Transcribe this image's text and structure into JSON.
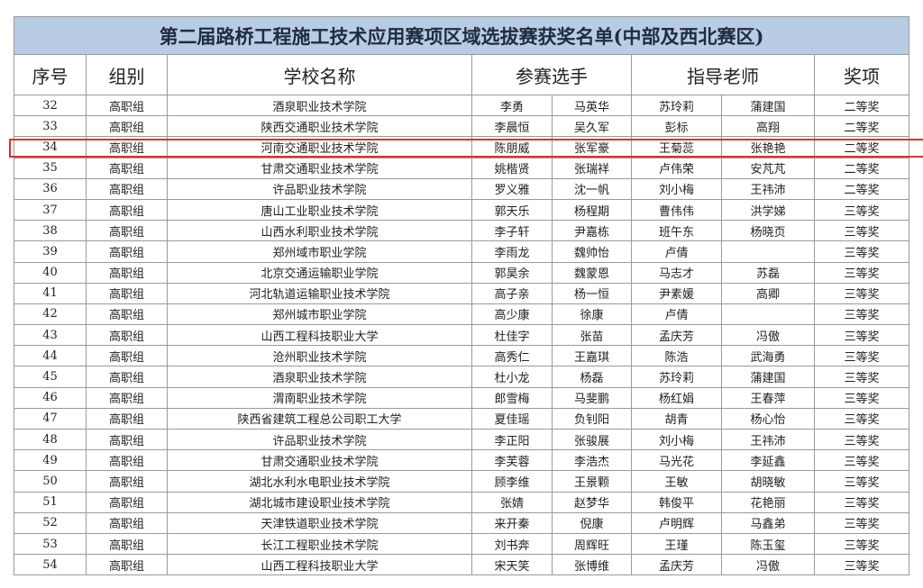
{
  "title": "第二届路桥工程施工技术应用赛项区域选拔赛获奖名单(中部及西北赛区)",
  "headers": {
    "no": "序号",
    "group": "组别",
    "school": "学校名称",
    "contestants": "参赛选手",
    "advisors": "指导老师",
    "award": "奖项"
  },
  "highlight_color": "#e0302a",
  "highlighted_row": "34",
  "rows": [
    [
      "32",
      "高职组",
      "酒泉职业技术学院",
      "李勇",
      "马英华",
      "苏玲莉",
      "蒲建国",
      "二等奖"
    ],
    [
      "33",
      "高职组",
      "陕西交通职业技术学院",
      "李晨恒",
      "吴久军",
      "彭标",
      "高翔",
      "二等奖"
    ],
    [
      "34",
      "高职组",
      "河南交通职业技术学院",
      "陈朋威",
      "张军豪",
      "王菊蕊",
      "张艳艳",
      "二等奖"
    ],
    [
      "35",
      "高职组",
      "甘肃交通职业技术学院",
      "姚楷贤",
      "张瑞祥",
      "卢伟荣",
      "安芃芃",
      "二等奖"
    ],
    [
      "36",
      "高职组",
      "许品职业技术学院",
      "罗义雅",
      "沈一帆",
      "刘小梅",
      "王祎沛",
      "二等奖"
    ],
    [
      "37",
      "高职组",
      "唐山工业职业技术学院",
      "郭天乐",
      "杨程期",
      "曹伟伟",
      "洪学娣",
      "三等奖"
    ],
    [
      "38",
      "高职组",
      "山西水利职业技术学院",
      "李子轩",
      "尹嘉栋",
      "班午东",
      "杨晓页",
      "三等奖"
    ],
    [
      "39",
      "高职组",
      "郑州域市职业学院",
      "李雨龙",
      "魏帅怡",
      "卢倩",
      "",
      "三等奖"
    ],
    [
      "40",
      "高职组",
      "北京交通运输职业学院",
      "郭昊余",
      "魏蒙恩",
      "马志才",
      "苏磊",
      "三等奖"
    ],
    [
      "41",
      "高职组",
      "河北轨道运输职业技术学院",
      "高子亲",
      "杨一恒",
      "尹素媛",
      "高卿",
      "三等奖"
    ],
    [
      "42",
      "高职组",
      "郑州城市职业学院",
      "高少康",
      "徐康",
      "卢倩",
      "",
      "三等奖"
    ],
    [
      "43",
      "高职组",
      "山西工程科技职业大学",
      "杜佳字",
      "张苗",
      "孟庆芳",
      "冯傲",
      "三等奖"
    ],
    [
      "44",
      "高职组",
      "沧州职业技术学院",
      "高秀仁",
      "王嘉琪",
      "陈浩",
      "武海勇",
      "三等奖"
    ],
    [
      "45",
      "高职组",
      "酒泉职业技术学院",
      "杜小龙",
      "杨磊",
      "苏玲莉",
      "蒲建国",
      "三等奖"
    ],
    [
      "46",
      "高职组",
      "渭南职业技术学院",
      "郎雪梅",
      "马斐鹏",
      "杨红娟",
      "王春萍",
      "三等奖"
    ],
    [
      "47",
      "高职组",
      "陕西省建筑工程总公司职工大学",
      "夏佳瑶",
      "负钊阳",
      "胡青",
      "杨心怡",
      "三等奖"
    ],
    [
      "48",
      "高职组",
      "许品职业技术学院",
      "李正阳",
      "张骏展",
      "刘小梅",
      "王祎沛",
      "三等奖"
    ],
    [
      "49",
      "高职组",
      "甘肃交通职业技术学院",
      "李芙蓉",
      "李浩杰",
      "马光花",
      "李延鑫",
      "三等奖"
    ],
    [
      "50",
      "高职组",
      "湖北水利水电职业技术学院",
      "顾李维",
      "王景颗",
      "王敏",
      "胡晓敏",
      "三等奖"
    ],
    [
      "51",
      "高职组",
      "湖北城市建设职业技术学院",
      "张婧",
      "赵梦华",
      "韩俊平",
      "花艳丽",
      "三等奖"
    ],
    [
      "52",
      "高职组",
      "天津铁道职业技术学院",
      "来开秦",
      "倪康",
      "卢明辉",
      "马鑫弟",
      "三等奖"
    ],
    [
      "53",
      "高职组",
      "长江工程职业技术学院",
      "刘书奔",
      "周辉旺",
      "王瑾",
      "陈玉玺",
      "三等奖"
    ],
    [
      "54",
      "高职组",
      "山西工程科技职业大学",
      "宋天笑",
      "张博维",
      "孟庆芳",
      "冯傲",
      "三等奖"
    ]
  ]
}
